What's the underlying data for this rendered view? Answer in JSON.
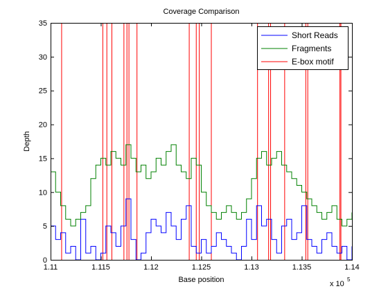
{
  "chart_data": {
    "type": "line",
    "title": "Coverage Comparison",
    "xlabel": "Base position",
    "ylabel": "Depth",
    "x_multiplier_label": "x 10",
    "x_multiplier_exponent": "5",
    "xlim": [
      1.11,
      1.14
    ],
    "ylim": [
      0,
      35
    ],
    "x_ticks": [
      1.11,
      1.115,
      1.12,
      1.125,
      1.13,
      1.135,
      1.14
    ],
    "x_tick_labels": [
      "1.11",
      "1.115",
      "1.12",
      "1.125",
      "1.13",
      "1.135",
      "1.14"
    ],
    "y_ticks": [
      0,
      5,
      10,
      15,
      20,
      25,
      30,
      35
    ],
    "y_tick_labels": [
      "0",
      "5",
      "10",
      "15",
      "20",
      "25",
      "30",
      "35"
    ],
    "grid": false,
    "legend_position": "top-right",
    "series": [
      {
        "name": "Short Reads",
        "color": "#0000ff",
        "x": [
          1.11,
          1.1105,
          1.111,
          1.1115,
          1.112,
          1.1125,
          1.113,
          1.1135,
          1.114,
          1.1145,
          1.115,
          1.1155,
          1.116,
          1.1165,
          1.117,
          1.1175,
          1.118,
          1.1185,
          1.119,
          1.1195,
          1.12,
          1.1205,
          1.121,
          1.1215,
          1.122,
          1.1225,
          1.123,
          1.1235,
          1.124,
          1.1245,
          1.125,
          1.1255,
          1.126,
          1.1265,
          1.127,
          1.1275,
          1.128,
          1.1285,
          1.129,
          1.1295,
          1.13,
          1.1305,
          1.131,
          1.1315,
          1.132,
          1.1325,
          1.133,
          1.1335,
          1.134,
          1.1345,
          1.135,
          1.1355,
          1.136,
          1.1365,
          1.137,
          1.1375,
          1.138,
          1.1385,
          1.139,
          1.1395,
          1.14
        ],
        "y": [
          5,
          3,
          4,
          1,
          2,
          0,
          6,
          1,
          2,
          0,
          1,
          5,
          4,
          2,
          5,
          9,
          3,
          0,
          1,
          4,
          6,
          5,
          4,
          7,
          5,
          3,
          6,
          8,
          2,
          1,
          3,
          1,
          2,
          4,
          3,
          2,
          1,
          0,
          2,
          6,
          3,
          8,
          5,
          6,
          3,
          1,
          5,
          6,
          3,
          4,
          8,
          3,
          2,
          1,
          3,
          4,
          2,
          1,
          2,
          0,
          2
        ]
      },
      {
        "name": "Fragments",
        "color": "#008000",
        "x": [
          1.11,
          1.1105,
          1.111,
          1.1115,
          1.112,
          1.1125,
          1.113,
          1.1135,
          1.114,
          1.1145,
          1.115,
          1.1155,
          1.116,
          1.1165,
          1.117,
          1.1175,
          1.118,
          1.1185,
          1.119,
          1.1195,
          1.12,
          1.1205,
          1.121,
          1.1215,
          1.122,
          1.1225,
          1.123,
          1.1235,
          1.124,
          1.1245,
          1.125,
          1.1255,
          1.126,
          1.1265,
          1.127,
          1.1275,
          1.128,
          1.1285,
          1.129,
          1.1295,
          1.13,
          1.1305,
          1.131,
          1.1315,
          1.132,
          1.1325,
          1.133,
          1.1335,
          1.134,
          1.1345,
          1.135,
          1.1355,
          1.136,
          1.1365,
          1.137,
          1.1375,
          1.138,
          1.1385,
          1.139,
          1.1395,
          1.14
        ],
        "y": [
          13,
          10,
          8,
          6,
          5,
          6,
          7,
          8,
          12,
          14,
          15,
          14,
          16,
          15,
          14,
          17,
          15,
          13,
          14,
          12,
          13,
          15,
          14,
          16,
          17,
          14,
          13,
          12,
          15,
          14,
          10,
          8,
          7,
          6,
          7,
          8,
          7,
          6,
          7,
          9,
          12,
          15,
          16,
          14,
          15,
          16,
          14,
          13,
          12,
          11,
          10,
          9,
          8,
          7,
          6,
          7,
          8,
          6,
          5,
          6,
          7
        ]
      },
      {
        "name": "E-box motif",
        "color": "#ff0000",
        "type": "vline",
        "x": [
          1.1111,
          1.1152,
          1.1156,
          1.1161,
          1.1173,
          1.1176,
          1.1178,
          1.1186,
          1.1238,
          1.1245,
          1.1248,
          1.126,
          1.1306,
          1.1317,
          1.1319,
          1.1333,
          1.1354,
          1.1356,
          1.1388,
          1.1389
        ]
      }
    ]
  }
}
